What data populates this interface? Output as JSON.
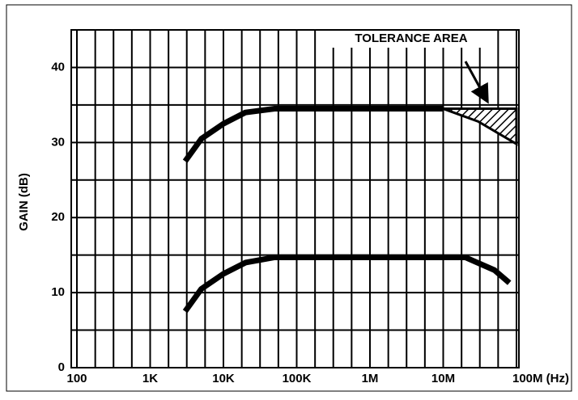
{
  "chart_data": {
    "type": "line",
    "ylabel": "GAIN (dB)",
    "xscale": "log",
    "xlim": [
      100,
      100000000
    ],
    "xticks": [
      {
        "value": 100,
        "label": "100"
      },
      {
        "value": 1000,
        "label": "1K"
      },
      {
        "value": 10000,
        "label": "10K"
      },
      {
        "value": 100000,
        "label": "100K"
      },
      {
        "value": 1000000,
        "label": "1M"
      },
      {
        "value": 10000000,
        "label": "10M"
      },
      {
        "value": 100000000,
        "label": "100M (Hz)"
      }
    ],
    "minor_xticks": [
      178,
      316,
      562,
      1780,
      3160,
      5620,
      17800,
      31600,
      56200,
      178000,
      316000,
      562000,
      1780000,
      3160000,
      5620000,
      17800000,
      31600000,
      56200000
    ],
    "ylim": [
      0,
      45
    ],
    "yticks": [
      0,
      10,
      20,
      30,
      40
    ],
    "minor_yticks": [
      5,
      15,
      25,
      35
    ],
    "grid": true,
    "series": [
      {
        "color": "#000000",
        "x": [
          3000,
          5000,
          10000,
          20000,
          50000,
          1000000,
          10000000
        ],
        "values": [
          27.5,
          30.5,
          32.5,
          34,
          34.5,
          34.5,
          34.5
        ]
      },
      {
        "color": "#000000",
        "x": [
          3000,
          5000,
          10000,
          20000,
          50000,
          1000000,
          20000000,
          50000000,
          80000000
        ],
        "values": [
          7.5,
          10.5,
          12.5,
          14,
          14.7,
          14.7,
          14.7,
          13,
          11.3
        ]
      }
    ],
    "tolerance_area": {
      "label": "TOLERANCE AREA",
      "x": [
        10000000,
        30000000,
        100000000
      ],
      "upper": [
        34.5,
        34.5,
        34.5
      ],
      "lower": [
        34.5,
        32.8,
        29.8
      ]
    }
  }
}
